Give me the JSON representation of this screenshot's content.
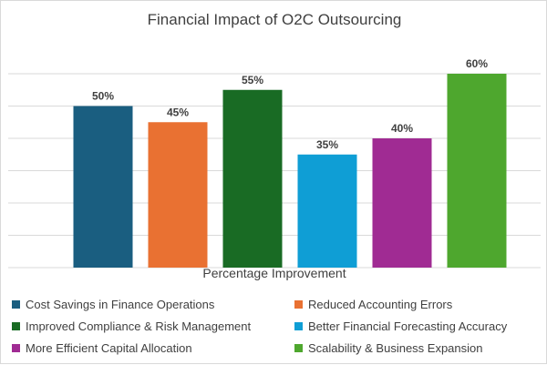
{
  "chart_data": {
    "type": "bar",
    "title": "Financial Impact of O2C Outsourcing",
    "xlabel": "Percentage Improvement",
    "ylabel": "",
    "ylim": [
      0,
      60
    ],
    "grid": true,
    "legend_position": "bottom",
    "categories": [
      "Cost Savings in Finance Operations",
      "Reduced Accounting Errors",
      "Improved Compliance & Risk Management",
      "Better Financial Forecasting Accuracy",
      "More Efficient Capital Allocation",
      "Scalability & Business Expansion"
    ],
    "values": [
      50,
      45,
      55,
      35,
      40,
      60
    ],
    "value_labels": [
      "50%",
      "45%",
      "55%",
      "35%",
      "40%",
      "60%"
    ],
    "colors": [
      "#1a5e80",
      "#e97132",
      "#196b24",
      "#0f9ed5",
      "#a02b93",
      "#4ea72e"
    ]
  }
}
